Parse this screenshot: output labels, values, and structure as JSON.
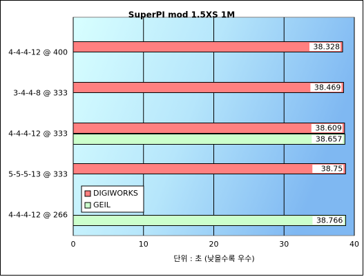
{
  "chart_data": {
    "type": "bar",
    "orientation": "horizontal",
    "title": "SuperPI mod 1.5XS 1M",
    "x_label": "단위 : 초 (낮을수록 우수)",
    "categories": [
      "4-4-4-12 @ 400",
      "3-4-4-8 @ 333",
      "4-4-4-12 @ 333",
      "5-5-5-13 @ 333",
      "4-4-4-12 @ 266"
    ],
    "series": [
      {
        "name": "DIGIWORKS",
        "color": "#ff8080",
        "values": [
          38.328,
          38.469,
          38.609,
          38.75,
          null
        ]
      },
      {
        "name": "GEIL",
        "color": "#ccffcc",
        "values": [
          null,
          null,
          38.657,
          null,
          38.766
        ]
      }
    ],
    "xlim": [
      0,
      40
    ],
    "xticks": [
      0,
      10,
      20,
      30,
      40
    ],
    "grid": true,
    "legend": "lower left"
  }
}
